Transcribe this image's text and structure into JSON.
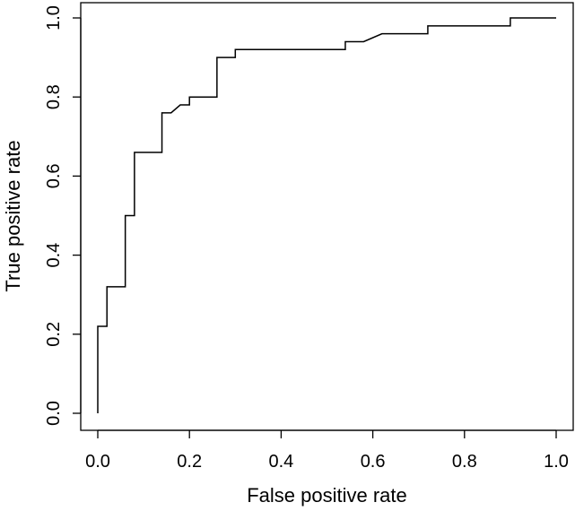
{
  "chart_data": {
    "type": "line",
    "title": "",
    "xlabel": "False positive rate",
    "ylabel": "True positive rate",
    "xlim": [
      0.0,
      1.0
    ],
    "ylim": [
      0.0,
      1.0
    ],
    "grid": false,
    "x_ticks": [
      "0.0",
      "0.2",
      "0.4",
      "0.6",
      "0.8",
      "1.0"
    ],
    "y_ticks": [
      "0.0",
      "0.2",
      "0.4",
      "0.6",
      "0.8",
      "1.0"
    ],
    "series": [
      {
        "line_color": "#000000",
        "points": [
          [
            0.0,
            0.0
          ],
          [
            0.0,
            0.22
          ],
          [
            0.02,
            0.22
          ],
          [
            0.02,
            0.32
          ],
          [
            0.06,
            0.32
          ],
          [
            0.06,
            0.5
          ],
          [
            0.08,
            0.5
          ],
          [
            0.08,
            0.66
          ],
          [
            0.14,
            0.66
          ],
          [
            0.14,
            0.76
          ],
          [
            0.16,
            0.76
          ],
          [
            0.18,
            0.78
          ],
          [
            0.2,
            0.78
          ],
          [
            0.2,
            0.8
          ],
          [
            0.26,
            0.8
          ],
          [
            0.26,
            0.9
          ],
          [
            0.3,
            0.9
          ],
          [
            0.3,
            0.92
          ],
          [
            0.54,
            0.92
          ],
          [
            0.54,
            0.94
          ],
          [
            0.58,
            0.94
          ],
          [
            0.62,
            0.96
          ],
          [
            0.72,
            0.96
          ],
          [
            0.72,
            0.98
          ],
          [
            0.9,
            0.98
          ],
          [
            0.9,
            1.0
          ],
          [
            1.0,
            1.0
          ]
        ]
      }
    ]
  }
}
